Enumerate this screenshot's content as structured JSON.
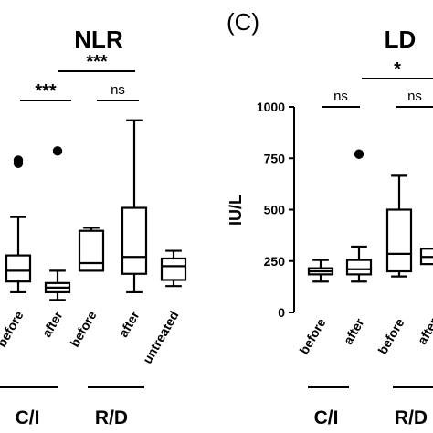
{
  "chart_data": [
    {
      "type": "box",
      "title": "NLR",
      "categories": [
        "before",
        "after",
        "before",
        "after",
        "untreated"
      ],
      "groups": [
        {
          "label": "C/I",
          "categories": [
            0,
            1
          ]
        },
        {
          "label": "R/D",
          "categories": [
            2,
            3
          ]
        }
      ],
      "boxes": [
        {
          "category": "before",
          "min": 0.6,
          "q1": 1.3,
          "median": 2.0,
          "q3": 3.0,
          "max": 5.5,
          "outliers": [
            9.0,
            9.2
          ]
        },
        {
          "category": "after",
          "min": 0.1,
          "q1": 0.6,
          "median": 0.9,
          "q3": 1.2,
          "max": 2.0,
          "outliers": [
            9.8
          ]
        },
        {
          "category": "before",
          "min": null,
          "q1": 2.0,
          "median": 2.5,
          "q3": 4.6,
          "max": 4.8,
          "outliers": []
        },
        {
          "category": "after",
          "min": 0.6,
          "q1": 1.8,
          "median": 2.9,
          "q3": 6.1,
          "max": 11.8,
          "outliers": []
        },
        {
          "category": "untreated",
          "min": 1.0,
          "q1": 1.4,
          "median": 2.3,
          "q3": 2.8,
          "max": 3.3,
          "outliers": []
        }
      ],
      "significance": [
        {
          "from": "before",
          "to": "after",
          "label": "***"
        },
        {
          "from": "after",
          "to": "after",
          "label": "***"
        },
        {
          "from": "before",
          "to": "after",
          "label": "ns"
        }
      ]
    },
    {
      "type": "box",
      "panel_label": "(C)",
      "title": "LD",
      "ylabel": "IU/L",
      "ylim": [
        0,
        1000
      ],
      "yticks": [
        0,
        250,
        500,
        750,
        1000
      ],
      "categories": [
        "before",
        "after",
        "before",
        "after"
      ],
      "groups": [
        {
          "label": "C/I",
          "categories": [
            0,
            1
          ]
        },
        {
          "label": "R/D",
          "categories": [
            2,
            3
          ]
        }
      ],
      "boxes": [
        {
          "category": "before",
          "min": 150,
          "q1": 185,
          "median": 200,
          "q3": 215,
          "max": 255,
          "outliers": []
        },
        {
          "category": "after",
          "min": 150,
          "q1": 185,
          "median": 210,
          "q3": 255,
          "max": 320,
          "outliers": [
            770
          ]
        },
        {
          "category": "before",
          "min": 175,
          "q1": 200,
          "median": 285,
          "q3": 500,
          "max": 665,
          "outliers": []
        },
        {
          "category": "after",
          "min": null,
          "q1": 235,
          "median": 270,
          "q3": 310,
          "max": null,
          "outliers": []
        }
      ],
      "significance": [
        {
          "from": "before",
          "to": "after",
          "label": "ns"
        },
        {
          "from": "before",
          "to": "after",
          "label": "ns"
        },
        {
          "from": "after",
          "to": "after",
          "label": "*"
        }
      ]
    }
  ]
}
